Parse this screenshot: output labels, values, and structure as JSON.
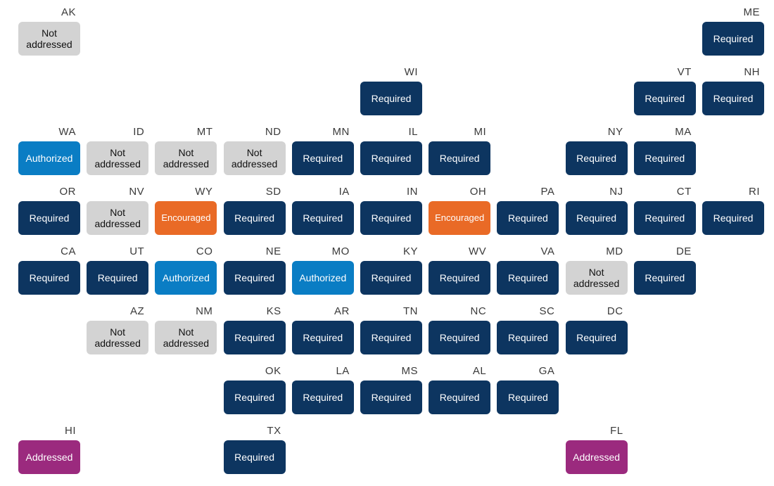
{
  "statuses": {
    "required": {
      "label": "Required",
      "color": "#0d3560"
    },
    "authorized": {
      "label": "Authorized",
      "color": "#0a7dc4"
    },
    "encouraged": {
      "label": "Encouraged",
      "color": "#e96a26"
    },
    "addressed": {
      "label": "Addressed",
      "color": "#9b2a7e"
    },
    "not": {
      "label": "Not addressed",
      "color": "#d3d3d3"
    }
  },
  "states": [
    {
      "abbr": "AK",
      "col": 0,
      "row": 0,
      "status": "not"
    },
    {
      "abbr": "ME",
      "col": 10,
      "row": 0,
      "status": "required"
    },
    {
      "abbr": "WI",
      "col": 5,
      "row": 1,
      "status": "required"
    },
    {
      "abbr": "VT",
      "col": 9,
      "row": 1,
      "status": "required"
    },
    {
      "abbr": "NH",
      "col": 10,
      "row": 1,
      "status": "required"
    },
    {
      "abbr": "WA",
      "col": 0,
      "row": 2,
      "status": "authorized"
    },
    {
      "abbr": "ID",
      "col": 1,
      "row": 2,
      "status": "not"
    },
    {
      "abbr": "MT",
      "col": 2,
      "row": 2,
      "status": "not"
    },
    {
      "abbr": "ND",
      "col": 3,
      "row": 2,
      "status": "not"
    },
    {
      "abbr": "MN",
      "col": 4,
      "row": 2,
      "status": "required"
    },
    {
      "abbr": "IL",
      "col": 5,
      "row": 2,
      "status": "required"
    },
    {
      "abbr": "MI",
      "col": 6,
      "row": 2,
      "status": "required"
    },
    {
      "abbr": "NY",
      "col": 8,
      "row": 2,
      "status": "required"
    },
    {
      "abbr": "MA",
      "col": 9,
      "row": 2,
      "status": "required"
    },
    {
      "abbr": "OR",
      "col": 0,
      "row": 3,
      "status": "required"
    },
    {
      "abbr": "NV",
      "col": 1,
      "row": 3,
      "status": "not"
    },
    {
      "abbr": "WY",
      "col": 2,
      "row": 3,
      "status": "encouraged"
    },
    {
      "abbr": "SD",
      "col": 3,
      "row": 3,
      "status": "required"
    },
    {
      "abbr": "IA",
      "col": 4,
      "row": 3,
      "status": "required"
    },
    {
      "abbr": "IN",
      "col": 5,
      "row": 3,
      "status": "required"
    },
    {
      "abbr": "OH",
      "col": 6,
      "row": 3,
      "status": "encouraged"
    },
    {
      "abbr": "PA",
      "col": 7,
      "row": 3,
      "status": "required"
    },
    {
      "abbr": "NJ",
      "col": 8,
      "row": 3,
      "status": "required"
    },
    {
      "abbr": "CT",
      "col": 9,
      "row": 3,
      "status": "required"
    },
    {
      "abbr": "RI",
      "col": 10,
      "row": 3,
      "status": "required"
    },
    {
      "abbr": "CA",
      "col": 0,
      "row": 4,
      "status": "required"
    },
    {
      "abbr": "UT",
      "col": 1,
      "row": 4,
      "status": "required"
    },
    {
      "abbr": "CO",
      "col": 2,
      "row": 4,
      "status": "authorized"
    },
    {
      "abbr": "NE",
      "col": 3,
      "row": 4,
      "status": "required"
    },
    {
      "abbr": "MO",
      "col": 4,
      "row": 4,
      "status": "authorized"
    },
    {
      "abbr": "KY",
      "col": 5,
      "row": 4,
      "status": "required"
    },
    {
      "abbr": "WV",
      "col": 6,
      "row": 4,
      "status": "required"
    },
    {
      "abbr": "VA",
      "col": 7,
      "row": 4,
      "status": "required"
    },
    {
      "abbr": "MD",
      "col": 8,
      "row": 4,
      "status": "not"
    },
    {
      "abbr": "DE",
      "col": 9,
      "row": 4,
      "status": "required"
    },
    {
      "abbr": "AZ",
      "col": 1,
      "row": 5,
      "status": "not"
    },
    {
      "abbr": "NM",
      "col": 2,
      "row": 5,
      "status": "not"
    },
    {
      "abbr": "KS",
      "col": 3,
      "row": 5,
      "status": "required"
    },
    {
      "abbr": "AR",
      "col": 4,
      "row": 5,
      "status": "required"
    },
    {
      "abbr": "TN",
      "col": 5,
      "row": 5,
      "status": "required"
    },
    {
      "abbr": "NC",
      "col": 6,
      "row": 5,
      "status": "required"
    },
    {
      "abbr": "SC",
      "col": 7,
      "row": 5,
      "status": "required"
    },
    {
      "abbr": "DC",
      "col": 8,
      "row": 5,
      "status": "required"
    },
    {
      "abbr": "OK",
      "col": 3,
      "row": 6,
      "status": "required"
    },
    {
      "abbr": "LA",
      "col": 4,
      "row": 6,
      "status": "required"
    },
    {
      "abbr": "MS",
      "col": 5,
      "row": 6,
      "status": "required"
    },
    {
      "abbr": "AL",
      "col": 6,
      "row": 6,
      "status": "required"
    },
    {
      "abbr": "GA",
      "col": 7,
      "row": 6,
      "status": "required"
    },
    {
      "abbr": "HI",
      "col": 0,
      "row": 7,
      "status": "addressed"
    },
    {
      "abbr": "TX",
      "col": 3,
      "row": 7,
      "status": "required"
    },
    {
      "abbr": "FL",
      "col": 8,
      "row": 7,
      "status": "addressed"
    }
  ]
}
